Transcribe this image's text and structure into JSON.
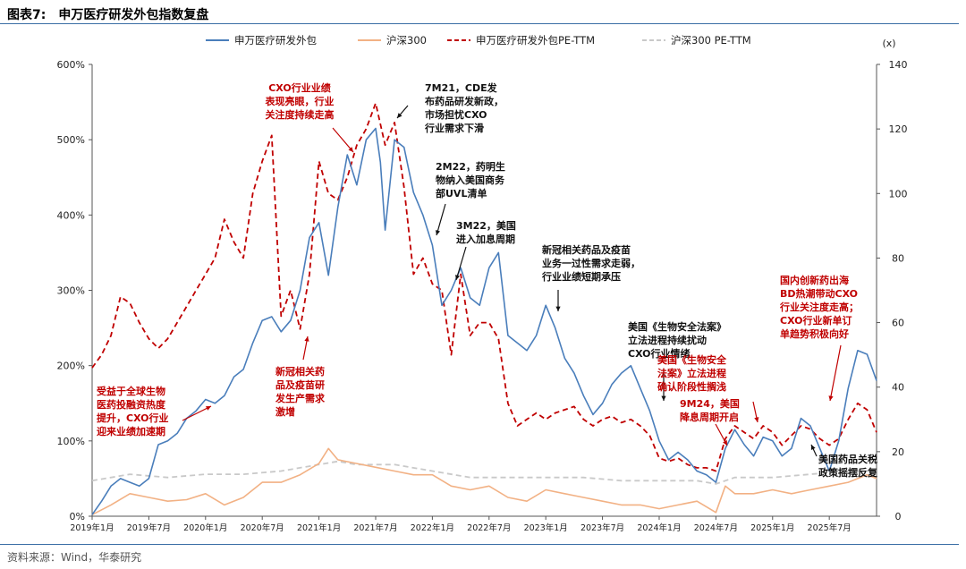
{
  "figure": {
    "number": "图表7:",
    "title": "申万医疗研发外包指数复盘",
    "source": "资料来源：Wind，华泰研究"
  },
  "chart_data": {
    "type": "line",
    "left_axis": {
      "ticks": [
        "0%",
        "100%",
        "200%",
        "300%",
        "400%",
        "500%",
        "600%"
      ],
      "range": [
        0,
        600
      ],
      "unit": "%"
    },
    "right_axis": {
      "label": "(x)",
      "ticks": [
        "0",
        "20",
        "40",
        "60",
        "80",
        "100",
        "120",
        "140"
      ],
      "range": [
        0,
        140
      ]
    },
    "x_ticks": [
      "2019年1月",
      "2019年7月",
      "2020年1月",
      "2020年7月",
      "2021年1月",
      "2021年7月",
      "2022年1月",
      "2022年7月",
      "2023年1月",
      "2023年7月",
      "2024年1月",
      "2024年7月",
      "2025年1月",
      "2025年7月"
    ],
    "x_range_months": [
      0,
      83
    ],
    "series": [
      {
        "name": "申万医疗研发外包",
        "axis": "left",
        "color": "#4a7ebb",
        "style": "solid",
        "points": [
          [
            0,
            2
          ],
          [
            1,
            20
          ],
          [
            2,
            40
          ],
          [
            3,
            50
          ],
          [
            4,
            45
          ],
          [
            5,
            40
          ],
          [
            6,
            50
          ],
          [
            7,
            95
          ],
          [
            8,
            100
          ],
          [
            9,
            110
          ],
          [
            10,
            130
          ],
          [
            11,
            140
          ],
          [
            12,
            155
          ],
          [
            13,
            150
          ],
          [
            14,
            160
          ],
          [
            15,
            185
          ],
          [
            16,
            195
          ],
          [
            17,
            230
          ],
          [
            18,
            260
          ],
          [
            19,
            265
          ],
          [
            20,
            245
          ],
          [
            21,
            260
          ],
          [
            22,
            300
          ],
          [
            23,
            370
          ],
          [
            24,
            390
          ],
          [
            25,
            320
          ],
          [
            26,
            410
          ],
          [
            27,
            480
          ],
          [
            28,
            440
          ],
          [
            29,
            500
          ],
          [
            30,
            515
          ],
          [
            30.5,
            470
          ],
          [
            31,
            380
          ],
          [
            32,
            500
          ],
          [
            33,
            490
          ],
          [
            34,
            430
          ],
          [
            35,
            400
          ],
          [
            36,
            360
          ],
          [
            37,
            280
          ],
          [
            38,
            300
          ],
          [
            39,
            330
          ],
          [
            40,
            290
          ],
          [
            41,
            280
          ],
          [
            42,
            330
          ],
          [
            43,
            350
          ],
          [
            44,
            240
          ],
          [
            45,
            230
          ],
          [
            46,
            220
          ],
          [
            47,
            240
          ],
          [
            48,
            280
          ],
          [
            49,
            250
          ],
          [
            50,
            210
          ],
          [
            51,
            190
          ],
          [
            52,
            160
          ],
          [
            53,
            135
          ],
          [
            54,
            150
          ],
          [
            55,
            175
          ],
          [
            56,
            190
          ],
          [
            57,
            200
          ],
          [
            58,
            170
          ],
          [
            59,
            140
          ],
          [
            60,
            100
          ],
          [
            61,
            75
          ],
          [
            62,
            85
          ],
          [
            63,
            75
          ],
          [
            64,
            60
          ],
          [
            65,
            55
          ],
          [
            66,
            45
          ],
          [
            67,
            90
          ],
          [
            68,
            115
          ],
          [
            69,
            95
          ],
          [
            70,
            80
          ],
          [
            71,
            105
          ],
          [
            72,
            100
          ],
          [
            73,
            80
          ],
          [
            74,
            90
          ],
          [
            75,
            130
          ],
          [
            76,
            120
          ],
          [
            77,
            90
          ],
          [
            78,
            60
          ],
          [
            79,
            100
          ],
          [
            80,
            170
          ],
          [
            81,
            220
          ],
          [
            82,
            215
          ],
          [
            83,
            180
          ]
        ]
      },
      {
        "name": "沪深300",
        "axis": "left",
        "color": "#f2b184",
        "style": "solid",
        "points": [
          [
            0,
            2
          ],
          [
            2,
            15
          ],
          [
            4,
            30
          ],
          [
            6,
            25
          ],
          [
            8,
            20
          ],
          [
            10,
            22
          ],
          [
            12,
            30
          ],
          [
            14,
            15
          ],
          [
            16,
            25
          ],
          [
            18,
            45
          ],
          [
            20,
            45
          ],
          [
            22,
            55
          ],
          [
            24,
            70
          ],
          [
            25,
            90
          ],
          [
            26,
            75
          ],
          [
            28,
            70
          ],
          [
            30,
            65
          ],
          [
            32,
            60
          ],
          [
            34,
            55
          ],
          [
            36,
            55
          ],
          [
            38,
            40
          ],
          [
            40,
            35
          ],
          [
            42,
            40
          ],
          [
            44,
            25
          ],
          [
            46,
            20
          ],
          [
            48,
            35
          ],
          [
            50,
            30
          ],
          [
            52,
            25
          ],
          [
            54,
            20
          ],
          [
            56,
            15
          ],
          [
            58,
            15
          ],
          [
            60,
            10
          ],
          [
            62,
            15
          ],
          [
            64,
            20
          ],
          [
            66,
            5
          ],
          [
            67,
            40
          ],
          [
            68,
            30
          ],
          [
            70,
            30
          ],
          [
            72,
            35
          ],
          [
            74,
            30
          ],
          [
            76,
            35
          ],
          [
            78,
            40
          ],
          [
            80,
            45
          ],
          [
            82,
            55
          ],
          [
            83,
            50
          ]
        ]
      },
      {
        "name": "申万医疗研发外包PE-TTM",
        "axis": "right",
        "color": "#c00000",
        "style": "dash",
        "points": [
          [
            0,
            46
          ],
          [
            1,
            50
          ],
          [
            2,
            56
          ],
          [
            3,
            68
          ],
          [
            4,
            66
          ],
          [
            5,
            60
          ],
          [
            6,
            55
          ],
          [
            7,
            52
          ],
          [
            8,
            55
          ],
          [
            9,
            60
          ],
          [
            10,
            65
          ],
          [
            11,
            70
          ],
          [
            12,
            75
          ],
          [
            13,
            80
          ],
          [
            14,
            92
          ],
          [
            15,
            85
          ],
          [
            16,
            80
          ],
          [
            17,
            100
          ],
          [
            18,
            110
          ],
          [
            19,
            118
          ],
          [
            20,
            62
          ],
          [
            21,
            70
          ],
          [
            22,
            58
          ],
          [
            23,
            75
          ],
          [
            24,
            110
          ],
          [
            25,
            100
          ],
          [
            26,
            98
          ],
          [
            27,
            105
          ],
          [
            28,
            115
          ],
          [
            29,
            120
          ],
          [
            30,
            128
          ],
          [
            31,
            115
          ],
          [
            32,
            122
          ],
          [
            33,
            102
          ],
          [
            34,
            75
          ],
          [
            35,
            80
          ],
          [
            36,
            72
          ],
          [
            37,
            70
          ],
          [
            38,
            50
          ],
          [
            39,
            75
          ],
          [
            40,
            56
          ],
          [
            41,
            60
          ],
          [
            42,
            60
          ],
          [
            43,
            55
          ],
          [
            44,
            35
          ],
          [
            45,
            28
          ],
          [
            46,
            30
          ],
          [
            47,
            32
          ],
          [
            48,
            30
          ],
          [
            49,
            32
          ],
          [
            50,
            33
          ],
          [
            51,
            34
          ],
          [
            52,
            30
          ],
          [
            53,
            28
          ],
          [
            54,
            30
          ],
          [
            55,
            31
          ],
          [
            56,
            29
          ],
          [
            57,
            30
          ],
          [
            58,
            28
          ],
          [
            59,
            25
          ],
          [
            60,
            18
          ],
          [
            61,
            17
          ],
          [
            62,
            18
          ],
          [
            63,
            16
          ],
          [
            64,
            15
          ],
          [
            65,
            15
          ],
          [
            66,
            14
          ],
          [
            67,
            24
          ],
          [
            68,
            28
          ],
          [
            69,
            26
          ],
          [
            70,
            24
          ],
          [
            71,
            28
          ],
          [
            72,
            26
          ],
          [
            73,
            22
          ],
          [
            74,
            25
          ],
          [
            75,
            28
          ],
          [
            76,
            27
          ],
          [
            77,
            24
          ],
          [
            78,
            22
          ],
          [
            79,
            24
          ],
          [
            80,
            30
          ],
          [
            81,
            35
          ],
          [
            82,
            33
          ],
          [
            83,
            26
          ]
        ]
      },
      {
        "name": "沪深300 PE-TTM",
        "axis": "right",
        "color": "#c9c9c9",
        "style": "dash",
        "points": [
          [
            0,
            11
          ],
          [
            4,
            13
          ],
          [
            8,
            12
          ],
          [
            12,
            13
          ],
          [
            16,
            13
          ],
          [
            20,
            14
          ],
          [
            24,
            16
          ],
          [
            26,
            17
          ],
          [
            28,
            16
          ],
          [
            32,
            16
          ],
          [
            36,
            14
          ],
          [
            40,
            12
          ],
          [
            44,
            12
          ],
          [
            48,
            12
          ],
          [
            52,
            12
          ],
          [
            56,
            11
          ],
          [
            60,
            11
          ],
          [
            64,
            11
          ],
          [
            66,
            10
          ],
          [
            68,
            12
          ],
          [
            72,
            12
          ],
          [
            76,
            13
          ],
          [
            80,
            14
          ],
          [
            83,
            14
          ]
        ]
      }
    ]
  },
  "annotations": [
    {
      "color": "red",
      "lines": [
        "受益于全球生物",
        "医药投融资热度",
        "提升，CXO行业",
        "迎来业绩加速期"
      ]
    },
    {
      "color": "red",
      "lines": [
        "CXO行业业绩",
        "表现亮眼，行业",
        "关注度持续走高"
      ]
    },
    {
      "color": "red",
      "lines": [
        "新冠相关药",
        "品及疫苗研",
        "发生产需求",
        "激增"
      ]
    },
    {
      "color": "black",
      "lines": [
        "7M21，CDE发",
        "布药品研发新政，",
        "市场担忧CXO",
        "行业需求下滑"
      ]
    },
    {
      "color": "black",
      "lines": [
        "2M22，药明生",
        "物纳入美国商务",
        "部UVL清单"
      ]
    },
    {
      "color": "black",
      "lines": [
        "3M22，美国",
        "进入加息周期"
      ]
    },
    {
      "color": "black",
      "lines": [
        "新冠相关药品及疫苗",
        "业务一过性需求走弱，",
        "行业业绩短期承压"
      ]
    },
    {
      "color": "black",
      "lines": [
        "美国《生物安全法案》",
        "立法进程持续扰动",
        "CXO行业情绪"
      ]
    },
    {
      "color": "red",
      "lines": [
        "美国《生物安全",
        "法案》立法进程",
        "确认阶段性搁浅"
      ]
    },
    {
      "color": "red",
      "lines": [
        "9M24，美国",
        "降息周期开启"
      ]
    },
    {
      "color": "red",
      "lines": [
        "国内创新药出海",
        "BD热潮带动CXO",
        "行业关注度走高；",
        "CXO行业新单订",
        "单趋势积极向好"
      ]
    },
    {
      "color": "black",
      "lines": [
        "美国药品关税",
        "政策摇摆反复"
      ]
    }
  ]
}
